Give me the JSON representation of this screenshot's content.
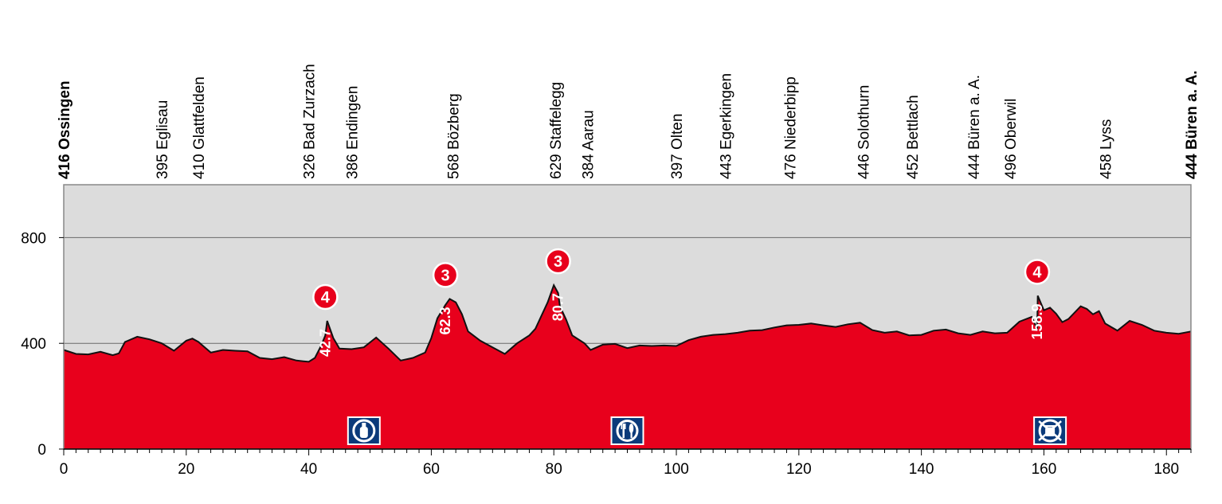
{
  "chart_data": {
    "type": "area",
    "title": "",
    "xlabel": "",
    "ylabel": "",
    "xlim": [
      0,
      184
    ],
    "ylim": [
      0,
      1000
    ],
    "x_ticks": [
      0,
      20,
      40,
      60,
      80,
      100,
      120,
      140,
      160,
      180
    ],
    "y_ticks": [
      0,
      400,
      800
    ],
    "grid": "horizontal",
    "colors": {
      "profile": "#e8001c",
      "background": "#dcdcdc",
      "outline": "#111111",
      "icon_bg": "#0b3a7a"
    },
    "profile": [
      [
        0,
        375
      ],
      [
        2,
        360
      ],
      [
        4,
        358
      ],
      [
        6,
        368
      ],
      [
        8,
        355
      ],
      [
        9,
        362
      ],
      [
        10,
        405
      ],
      [
        12,
        425
      ],
      [
        14,
        415
      ],
      [
        16,
        400
      ],
      [
        18,
        372
      ],
      [
        20,
        410
      ],
      [
        21,
        418
      ],
      [
        22,
        405
      ],
      [
        24,
        365
      ],
      [
        26,
        375
      ],
      [
        28,
        372
      ],
      [
        30,
        370
      ],
      [
        32,
        345
      ],
      [
        34,
        340
      ],
      [
        36,
        348
      ],
      [
        38,
        335
      ],
      [
        40,
        330
      ],
      [
        41,
        345
      ],
      [
        42,
        390
      ],
      [
        42.7,
        430
      ],
      [
        43,
        485
      ],
      [
        44,
        420
      ],
      [
        45,
        380
      ],
      [
        47,
        378
      ],
      [
        49,
        385
      ],
      [
        51,
        422
      ],
      [
        53,
        380
      ],
      [
        55,
        335
      ],
      [
        57,
        345
      ],
      [
        59,
        365
      ],
      [
        60,
        420
      ],
      [
        61,
        495
      ],
      [
        62.3,
        545
      ],
      [
        63,
        568
      ],
      [
        64,
        555
      ],
      [
        65,
        510
      ],
      [
        66,
        445
      ],
      [
        68,
        410
      ],
      [
        70,
        385
      ],
      [
        72,
        360
      ],
      [
        74,
        400
      ],
      [
        76,
        430
      ],
      [
        77,
        455
      ],
      [
        78,
        505
      ],
      [
        79,
        555
      ],
      [
        80,
        620
      ],
      [
        80.7,
        590
      ],
      [
        81,
        540
      ],
      [
        82,
        490
      ],
      [
        83,
        430
      ],
      [
        85,
        400
      ],
      [
        86,
        375
      ],
      [
        88,
        395
      ],
      [
        90,
        398
      ],
      [
        92,
        382
      ],
      [
        94,
        392
      ],
      [
        96,
        390
      ],
      [
        98,
        392
      ],
      [
        100,
        390
      ],
      [
        102,
        412
      ],
      [
        104,
        425
      ],
      [
        106,
        432
      ],
      [
        108,
        435
      ],
      [
        110,
        440
      ],
      [
        112,
        448
      ],
      [
        114,
        450
      ],
      [
        116,
        460
      ],
      [
        118,
        468
      ],
      [
        120,
        470
      ],
      [
        122,
        475
      ],
      [
        124,
        468
      ],
      [
        126,
        462
      ],
      [
        128,
        472
      ],
      [
        130,
        478
      ],
      [
        132,
        450
      ],
      [
        134,
        440
      ],
      [
        136,
        445
      ],
      [
        138,
        430
      ],
      [
        140,
        432
      ],
      [
        142,
        448
      ],
      [
        144,
        452
      ],
      [
        146,
        438
      ],
      [
        148,
        432
      ],
      [
        150,
        445
      ],
      [
        152,
        438
      ],
      [
        154,
        440
      ],
      [
        156,
        482
      ],
      [
        158,
        500
      ],
      [
        158.9,
        455
      ],
      [
        159,
        580
      ],
      [
        160,
        525
      ],
      [
        161,
        535
      ],
      [
        162,
        512
      ],
      [
        163,
        480
      ],
      [
        164,
        492
      ],
      [
        166,
        540
      ],
      [
        167,
        530
      ],
      [
        168,
        510
      ],
      [
        169,
        522
      ],
      [
        170,
        475
      ],
      [
        172,
        448
      ],
      [
        174,
        485
      ],
      [
        176,
        470
      ],
      [
        178,
        448
      ],
      [
        180,
        440
      ],
      [
        182,
        436
      ],
      [
        184,
        445
      ]
    ],
    "towns": [
      {
        "km": 0,
        "label": "416 Ossingen",
        "bold": true
      },
      {
        "km": 16,
        "label": "395 Eglisau"
      },
      {
        "km": 22,
        "label": "410 Glattfelden"
      },
      {
        "km": 40,
        "label": "326 Bad Zurzach"
      },
      {
        "km": 47,
        "label": "386 Endingen"
      },
      {
        "km": 63.5,
        "label": "568 Bözberg"
      },
      {
        "km": 80.2,
        "label": "629 Staffelegg"
      },
      {
        "km": 85.5,
        "label": "384 Aarau"
      },
      {
        "km": 100,
        "label": "397 Olten"
      },
      {
        "km": 108,
        "label": "443 Egerkingen"
      },
      {
        "km": 118.5,
        "label": "476 Niederbipp"
      },
      {
        "km": 130.5,
        "label": "446 Solothurn"
      },
      {
        "km": 138.5,
        "label": "452 Bettlach"
      },
      {
        "km": 148.5,
        "label": "444 Büren a. A."
      },
      {
        "km": 154.5,
        "label": "496 Oberwil"
      },
      {
        "km": 170,
        "label": "458 Lyss"
      },
      {
        "km": 184,
        "label": "444 Büren a. A.",
        "bold": true
      }
    ],
    "climbs": [
      {
        "km": 42.7,
        "category": "4",
        "distance_label": "42.7",
        "elev": 485
      },
      {
        "km": 62.3,
        "category": "3",
        "distance_label": "62.3",
        "elev": 568
      },
      {
        "km": 80.7,
        "category": "3",
        "distance_label": "80.7",
        "elev": 620
      },
      {
        "km": 158.9,
        "category": "4",
        "distance_label": "158.9",
        "elev": 580
      }
    ],
    "markers": [
      {
        "km": 49,
        "icon": "water-bottle-icon"
      },
      {
        "km": 92,
        "icon": "feeding-zone-icon"
      },
      {
        "km": 161,
        "icon": "no-littering-zone-icon"
      }
    ]
  }
}
